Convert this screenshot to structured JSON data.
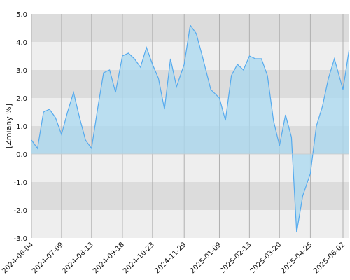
{
  "chart_data": {
    "type": "area",
    "title": "",
    "xlabel": "",
    "ylabel": "[Zmiany %]",
    "ylim": [
      -3.0,
      5.0
    ],
    "y_ticks": [
      "-3.0",
      "-2.0",
      "-1.0",
      "0.0",
      "1.0",
      "2.0",
      "3.0",
      "4.0",
      "5.0"
    ],
    "x_ticks": [
      "2024-06-04",
      "2024-07-09",
      "2024-08-13",
      "2024-09-18",
      "2024-10-23",
      "2024-11-29",
      "2025-01-09",
      "2025-02-13",
      "2025-03-20",
      "2025-04-25",
      "2025-06-02"
    ],
    "grid": true,
    "legend": "none",
    "colors": {
      "line": "#55aaee",
      "fill": "#a8d8f0",
      "band_dark": "#dcdcdc",
      "band_light": "#eeeeee",
      "vgrid": "#b0b0b0"
    },
    "series": [
      {
        "x": [
          "2024-06-04",
          "2024-06-11",
          "2024-06-18",
          "2024-06-25",
          "2024-07-02",
          "2024-07-09",
          "2024-07-16",
          "2024-07-23",
          "2024-07-30",
          "2024-08-06",
          "2024-08-13",
          "2024-08-20",
          "2024-08-27",
          "2024-09-03",
          "2024-09-10",
          "2024-09-18",
          "2024-09-25",
          "2024-10-02",
          "2024-10-09",
          "2024-10-16",
          "2024-10-23",
          "2024-10-30",
          "2024-11-06",
          "2024-11-13",
          "2024-11-20",
          "2024-11-29",
          "2024-12-06",
          "2024-12-13",
          "2024-12-20",
          "2024-12-30",
          "2025-01-09",
          "2025-01-16",
          "2025-01-23",
          "2025-01-30",
          "2025-02-06",
          "2025-02-13",
          "2025-02-20",
          "2025-02-27",
          "2025-03-06",
          "2025-03-13",
          "2025-03-20",
          "2025-03-27",
          "2025-04-03",
          "2025-04-09",
          "2025-04-16",
          "2025-04-25",
          "2025-05-02",
          "2025-05-09",
          "2025-05-16",
          "2025-05-23",
          "2025-06-02",
          "2025-06-09"
        ],
        "values": [
          0.5,
          0.2,
          1.5,
          1.6,
          1.3,
          0.7,
          1.5,
          2.2,
          1.3,
          0.5,
          0.2,
          1.6,
          2.9,
          3.0,
          2.2,
          3.5,
          3.6,
          3.4,
          3.1,
          3.8,
          3.2,
          2.7,
          1.6,
          3.4,
          2.4,
          3.2,
          4.6,
          4.3,
          3.5,
          2.3,
          2.0,
          1.2,
          2.8,
          3.2,
          3.0,
          3.5,
          3.4,
          3.4,
          2.8,
          1.2,
          0.3,
          1.4,
          0.6,
          -2.8,
          -1.5,
          -0.7,
          1.0,
          1.7,
          2.7,
          3.4,
          2.3,
          3.7
        ]
      }
    ]
  }
}
